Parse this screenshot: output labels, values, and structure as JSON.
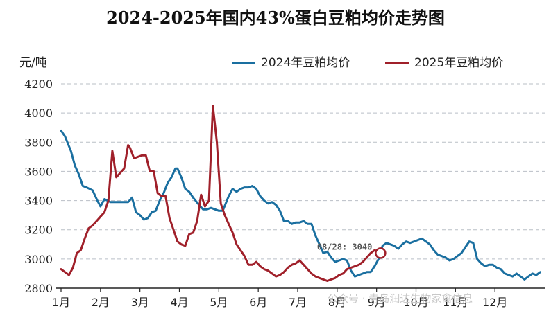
{
  "chart_data": {
    "type": "line",
    "title": "2024-2025年国内43%蛋白豆粕均价走势图",
    "ylabel": "元/吨",
    "ylim": [
      2800,
      4200
    ],
    "yticks": [
      2800,
      3000,
      3200,
      3400,
      3600,
      3800,
      4000,
      4200
    ],
    "xlim": [
      1,
      13
    ],
    "xticks": [
      {
        "label": "1月",
        "x": 1
      },
      {
        "label": "2月",
        "x": 2
      },
      {
        "label": "3月",
        "x": 3
      },
      {
        "label": "4月",
        "x": 4
      },
      {
        "label": "5月",
        "x": 5
      },
      {
        "label": "6月",
        "x": 6
      },
      {
        "label": "7月",
        "x": 7
      },
      {
        "label": "8月",
        "x": 8
      },
      {
        "label": "9月",
        "x": 9
      },
      {
        "label": "10月",
        "x": 10
      },
      {
        "label": "11月",
        "x": 11
      },
      {
        "label": "12月",
        "x": 12
      }
    ],
    "grid": "horizontal-dashed",
    "legend_position": "top-right",
    "series": [
      {
        "name": "2024年豆粕均价",
        "color": "#1a6fa0",
        "points": [
          [
            1.0,
            3880
          ],
          [
            1.1,
            3840
          ],
          [
            1.25,
            3740
          ],
          [
            1.35,
            3640
          ],
          [
            1.45,
            3580
          ],
          [
            1.55,
            3500
          ],
          [
            1.65,
            3490
          ],
          [
            1.8,
            3470
          ],
          [
            1.92,
            3400
          ],
          [
            2.0,
            3360
          ],
          [
            2.1,
            3410
          ],
          [
            2.25,
            3390
          ],
          [
            2.4,
            3390
          ],
          [
            2.55,
            3390
          ],
          [
            2.7,
            3390
          ],
          [
            2.8,
            3420
          ],
          [
            2.9,
            3320
          ],
          [
            3.0,
            3300
          ],
          [
            3.1,
            3270
          ],
          [
            3.2,
            3280
          ],
          [
            3.3,
            3320
          ],
          [
            3.4,
            3330
          ],
          [
            3.5,
            3400
          ],
          [
            3.6,
            3450
          ],
          [
            3.7,
            3520
          ],
          [
            3.8,
            3560
          ],
          [
            3.9,
            3620
          ],
          [
            3.95,
            3620
          ],
          [
            4.05,
            3560
          ],
          [
            4.15,
            3480
          ],
          [
            4.25,
            3460
          ],
          [
            4.35,
            3420
          ],
          [
            4.5,
            3370
          ],
          [
            4.6,
            3340
          ],
          [
            4.7,
            3340
          ],
          [
            4.8,
            3350
          ],
          [
            4.9,
            3340
          ],
          [
            5.0,
            3330
          ],
          [
            5.1,
            3330
          ],
          [
            5.25,
            3430
          ],
          [
            5.35,
            3480
          ],
          [
            5.45,
            3460
          ],
          [
            5.55,
            3480
          ],
          [
            5.65,
            3490
          ],
          [
            5.75,
            3490
          ],
          [
            5.85,
            3500
          ],
          [
            5.95,
            3480
          ],
          [
            6.05,
            3430
          ],
          [
            6.15,
            3400
          ],
          [
            6.25,
            3380
          ],
          [
            6.35,
            3390
          ],
          [
            6.45,
            3370
          ],
          [
            6.55,
            3330
          ],
          [
            6.65,
            3260
          ],
          [
            6.75,
            3260
          ],
          [
            6.85,
            3240
          ],
          [
            6.95,
            3250
          ],
          [
            7.05,
            3250
          ],
          [
            7.15,
            3260
          ],
          [
            7.25,
            3240
          ],
          [
            7.35,
            3240
          ],
          [
            7.45,
            3160
          ],
          [
            7.55,
            3100
          ],
          [
            7.65,
            3040
          ],
          [
            7.75,
            3050
          ],
          [
            7.85,
            3010
          ],
          [
            7.95,
            2980
          ],
          [
            8.05,
            2990
          ],
          [
            8.15,
            3000
          ],
          [
            8.25,
            2990
          ],
          [
            8.35,
            2920
          ],
          [
            8.45,
            2880
          ],
          [
            8.55,
            2890
          ],
          [
            8.65,
            2900
          ],
          [
            8.75,
            2910
          ],
          [
            8.85,
            2910
          ],
          [
            8.95,
            2950
          ],
          [
            9.05,
            3000
          ],
          [
            9.15,
            3090
          ],
          [
            9.25,
            3110
          ],
          [
            9.35,
            3100
          ],
          [
            9.45,
            3090
          ],
          [
            9.55,
            3070
          ],
          [
            9.65,
            3100
          ],
          [
            9.75,
            3120
          ],
          [
            9.85,
            3110
          ],
          [
            9.95,
            3120
          ],
          [
            10.05,
            3130
          ],
          [
            10.15,
            3140
          ],
          [
            10.25,
            3120
          ],
          [
            10.35,
            3100
          ],
          [
            10.45,
            3060
          ],
          [
            10.55,
            3030
          ],
          [
            10.65,
            3020
          ],
          [
            10.75,
            3010
          ],
          [
            10.85,
            2990
          ],
          [
            10.95,
            3000
          ],
          [
            11.05,
            3020
          ],
          [
            11.15,
            3040
          ],
          [
            11.25,
            3080
          ],
          [
            11.35,
            3120
          ],
          [
            11.45,
            3110
          ],
          [
            11.55,
            3000
          ],
          [
            11.65,
            2970
          ],
          [
            11.75,
            2950
          ],
          [
            11.85,
            2960
          ],
          [
            11.95,
            2960
          ],
          [
            12.05,
            2940
          ],
          [
            12.15,
            2930
          ],
          [
            12.25,
            2900
          ],
          [
            12.35,
            2890
          ],
          [
            12.45,
            2880
          ],
          [
            12.55,
            2900
          ],
          [
            12.65,
            2880
          ],
          [
            12.75,
            2860
          ],
          [
            12.85,
            2880
          ],
          [
            12.95,
            2900
          ],
          [
            13.05,
            2890
          ],
          [
            13.15,
            2910
          ]
        ]
      },
      {
        "name": "2025年豆粕均价",
        "color": "#a0202a",
        "points": [
          [
            1.0,
            2930
          ],
          [
            1.1,
            2910
          ],
          [
            1.2,
            2890
          ],
          [
            1.3,
            2940
          ],
          [
            1.4,
            3040
          ],
          [
            1.5,
            3060
          ],
          [
            1.6,
            3140
          ],
          [
            1.7,
            3210
          ],
          [
            1.8,
            3230
          ],
          [
            1.9,
            3260
          ],
          [
            2.0,
            3290
          ],
          [
            2.1,
            3320
          ],
          [
            2.2,
            3400
          ],
          [
            2.3,
            3740
          ],
          [
            2.4,
            3560
          ],
          [
            2.5,
            3590
          ],
          [
            2.6,
            3620
          ],
          [
            2.7,
            3780
          ],
          [
            2.75,
            3760
          ],
          [
            2.85,
            3690
          ],
          [
            2.95,
            3700
          ],
          [
            3.05,
            3710
          ],
          [
            3.15,
            3710
          ],
          [
            3.25,
            3600
          ],
          [
            3.35,
            3600
          ],
          [
            3.45,
            3450
          ],
          [
            3.55,
            3430
          ],
          [
            3.65,
            3430
          ],
          [
            3.75,
            3280
          ],
          [
            3.85,
            3200
          ],
          [
            3.95,
            3120
          ],
          [
            4.05,
            3100
          ],
          [
            4.15,
            3090
          ],
          [
            4.25,
            3170
          ],
          [
            4.35,
            3180
          ],
          [
            4.45,
            3260
          ],
          [
            4.55,
            3440
          ],
          [
            4.65,
            3360
          ],
          [
            4.75,
            3400
          ],
          [
            4.85,
            4050
          ],
          [
            4.95,
            3800
          ],
          [
            5.05,
            3380
          ],
          [
            5.15,
            3300
          ],
          [
            5.25,
            3240
          ],
          [
            5.35,
            3180
          ],
          [
            5.45,
            3100
          ],
          [
            5.55,
            3060
          ],
          [
            5.65,
            3020
          ],
          [
            5.75,
            2960
          ],
          [
            5.85,
            2960
          ],
          [
            5.95,
            2980
          ],
          [
            6.05,
            2950
          ],
          [
            6.15,
            2930
          ],
          [
            6.25,
            2920
          ],
          [
            6.35,
            2900
          ],
          [
            6.45,
            2880
          ],
          [
            6.55,
            2890
          ],
          [
            6.65,
            2910
          ],
          [
            6.75,
            2940
          ],
          [
            6.85,
            2960
          ],
          [
            6.95,
            2970
          ],
          [
            7.05,
            2990
          ],
          [
            7.15,
            2960
          ],
          [
            7.25,
            2930
          ],
          [
            7.35,
            2900
          ],
          [
            7.45,
            2880
          ],
          [
            7.55,
            2870
          ],
          [
            7.65,
            2860
          ],
          [
            7.75,
            2850
          ],
          [
            7.85,
            2860
          ],
          [
            7.95,
            2870
          ],
          [
            8.05,
            2890
          ],
          [
            8.15,
            2900
          ],
          [
            8.25,
            2930
          ],
          [
            8.35,
            2940
          ],
          [
            8.45,
            2950
          ],
          [
            8.55,
            2960
          ],
          [
            8.65,
            2980
          ],
          [
            8.75,
            3010
          ],
          [
            8.85,
            3040
          ],
          [
            8.95,
            3060
          ],
          [
            9.05,
            3050
          ],
          [
            9.1,
            3040
          ]
        ]
      }
    ],
    "annotation": {
      "text": "08/28: 3040",
      "x": 9.1,
      "y": 3040
    }
  },
  "watermark": {
    "text": "公众号 · 青岛润达生物家禽信息"
  }
}
